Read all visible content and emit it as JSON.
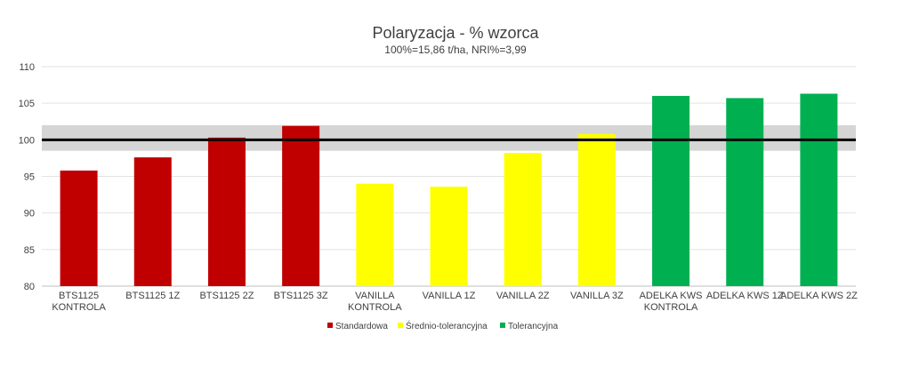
{
  "chart_data": {
    "type": "bar",
    "title": "Polaryzacja - % wzorca",
    "subtitle": "100%=15,86 t/ha, NRI%=3,99",
    "ylim": [
      80,
      110
    ],
    "yticks": [
      80,
      85,
      90,
      95,
      100,
      105,
      110
    ],
    "grid": true,
    "reference_line": 100,
    "reference_band": [
      98.5,
      102
    ],
    "legend_position": "bottom",
    "groups": [
      {
        "name": "Standardowa",
        "color": "#c00000"
      },
      {
        "name": "Średnio-tolerancyjna",
        "color": "#ffff00"
      },
      {
        "name": "Tolerancyjna",
        "color": "#00b050"
      }
    ],
    "bars": [
      {
        "label": [
          "BTS1125",
          "KONTROLA"
        ],
        "value": 95.8,
        "group": 0
      },
      {
        "label": [
          "BTS1125 1Z"
        ],
        "value": 97.6,
        "group": 0
      },
      {
        "label": [
          "BTS1125 2Z"
        ],
        "value": 100.3,
        "group": 0
      },
      {
        "label": [
          "BTS1125 3Z"
        ],
        "value": 101.9,
        "group": 0
      },
      {
        "label": [
          "VANILLA",
          "KONTROLA"
        ],
        "value": 94.0,
        "group": 1
      },
      {
        "label": [
          "VANILLA 1Z"
        ],
        "value": 93.6,
        "group": 1
      },
      {
        "label": [
          "VANILLA 2Z"
        ],
        "value": 98.2,
        "group": 1
      },
      {
        "label": [
          "VANILLA 3Z"
        ],
        "value": 100.8,
        "group": 1
      },
      {
        "label": [
          "ADELKA KWS",
          "KONTROLA"
        ],
        "value": 106.0,
        "group": 2
      },
      {
        "label": [
          "ADELKA KWS 1Z"
        ],
        "value": 105.7,
        "group": 2
      },
      {
        "label": [
          "ADELKA KWS 2Z"
        ],
        "value": 106.3,
        "group": 2
      }
    ]
  }
}
